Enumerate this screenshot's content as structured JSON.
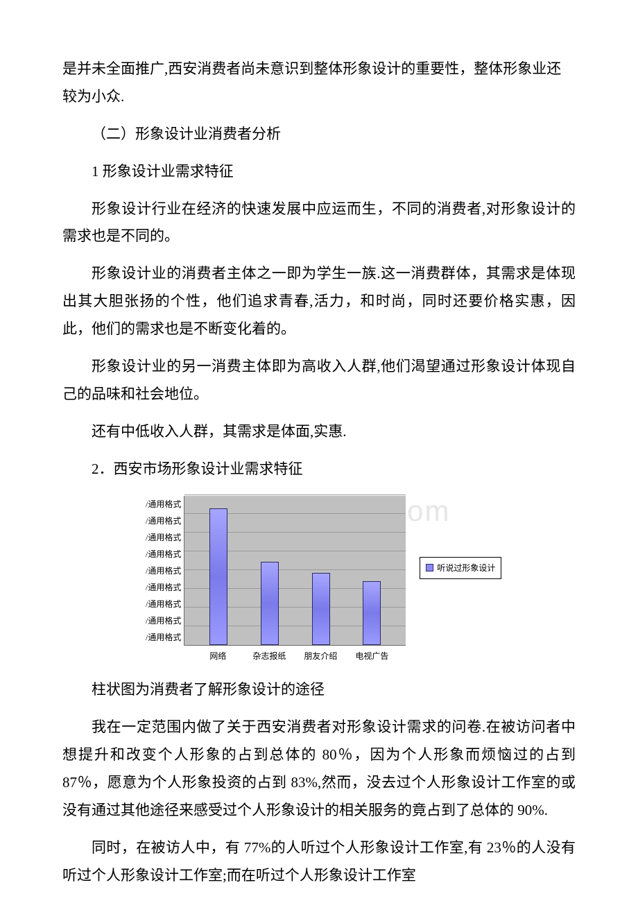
{
  "paragraphs": {
    "p1": "是并未全面推广,西安消费者尚未意识到整体形象设计的重要性，整体形象业还较为小众.",
    "h2": "（二）形象设计业消费者分析",
    "h3": "1 形象设计业需求特征",
    "p2": "形象设计行业在经济的快速发展中应运而生，不同的消费者,对形象设计的需求也是不同的。",
    "p3": "形象设计业的消费者主体之一即为学生一族.这一消费群体，其需求是体现出其大胆张扬的个性，他们追求青春,活力，和时尚，同时还要价格实惠，因此，他们的需求也是不断变化着的。",
    "p4": "形象设计业的另一消费主体即为高收入人群,他们渴望通过形象设计体现自己的品味和社会地位。",
    "p5": "还有中低收入人群，其需求是体面,实惠.",
    "h4": "2．西安市场形象设计业需求特征",
    "caption": "柱状图为消费者了解形象设计的途径",
    "p6": "我在一定范围内做了关于西安消费者对形象设计需求的问卷.在被访问者中想提升和改变个人形象的占到总体的 80％，因为个人形象而烦恼过的占到 87％，愿意为个人形象投资的占到 83%,然而，没去过个人形象设计工作室的或没有通过其他途径来感受过个人形象设计的相关服务的竟占到了总体的 90%.",
    "p7": "同时，在被访人中，有 77%的人听过个人形象设计工作室,有 23％的人没有听过个人形象设计工作室;而在听过个人形象设计工作室"
  },
  "watermark": "www.bdocx.com",
  "chart": {
    "type": "bar",
    "y_tick_label": "/通用格式",
    "y_tick_count": 9,
    "categories": [
      "网络",
      "杂志报纸",
      "朋友介绍",
      "电视广告"
    ],
    "values": [
      8.2,
      5.0,
      4.3,
      3.8
    ],
    "ymax": 9,
    "bar_color": "#8a8af0",
    "bar_border": "#2a2a6a",
    "plot_bg": "#c0c0c0",
    "grid_color": "#9a9a9a",
    "axis_color": "#6b6b6b",
    "legend_label": "听说过形象设计",
    "label_fontsize": 12
  }
}
